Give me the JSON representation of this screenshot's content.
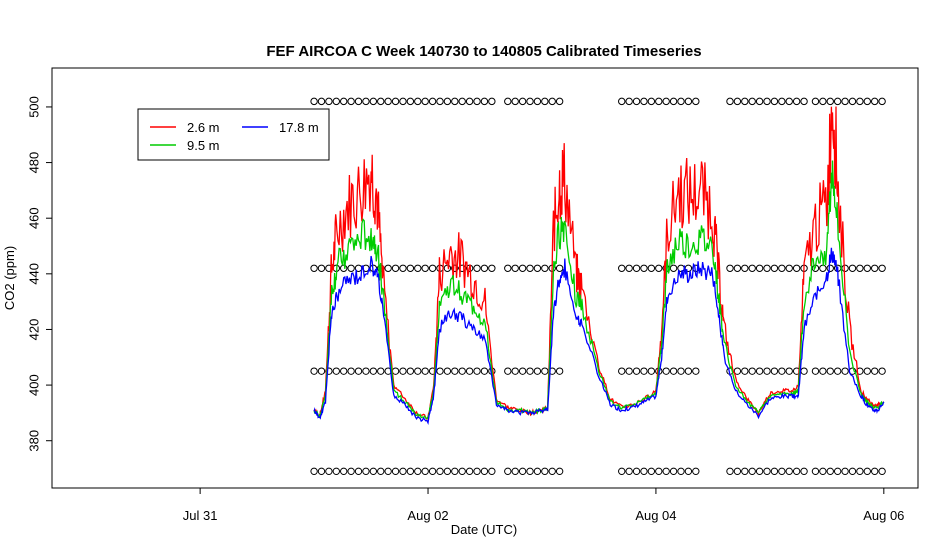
{
  "chart_data": {
    "type": "line",
    "title": "FEF AIRCOA C  Week 140730 to 140805  Calibrated Timeseries",
    "xlabel": "Date (UTC)",
    "ylabel": "CO2 (ppm)",
    "x_tick_labels": [
      "Jul 31",
      "Aug 02",
      "Aug 04",
      "Aug 06"
    ],
    "x_tick_days": [
      0,
      2,
      4,
      6
    ],
    "xlim_days": [
      -1.3,
      6.3
    ],
    "y_ticks": [
      380,
      400,
      420,
      440,
      460,
      480,
      500
    ],
    "ylim": [
      363,
      514
    ],
    "legend": {
      "position": "top-left",
      "entries": [
        {
          "label": "2.6 m",
          "color": "#ff0000"
        },
        {
          "label": "9.5 m",
          "color": "#00cc00"
        },
        {
          "label": "17.8 m",
          "color": "#0000ff"
        }
      ]
    },
    "series": [
      {
        "name": "2.6 m",
        "color": "#ff0000",
        "points": [
          [
            1.0,
            391
          ],
          [
            1.05,
            389
          ],
          [
            1.1,
            398
          ],
          [
            1.15,
            440
          ],
          [
            1.2,
            455
          ],
          [
            1.3,
            465
          ],
          [
            1.4,
            470
          ],
          [
            1.5,
            478
          ],
          [
            1.55,
            468
          ],
          [
            1.6,
            440
          ],
          [
            1.7,
            400
          ],
          [
            1.8,
            395
          ],
          [
            1.9,
            390
          ],
          [
            2.0,
            388
          ],
          [
            2.05,
            400
          ],
          [
            2.1,
            440
          ],
          [
            2.2,
            448
          ],
          [
            2.3,
            445
          ],
          [
            2.4,
            438
          ],
          [
            2.5,
            430
          ],
          [
            2.6,
            395
          ],
          [
            2.7,
            392
          ],
          [
            2.8,
            391
          ],
          [
            2.9,
            390
          ],
          [
            3.0,
            391
          ],
          [
            3.05,
            392
          ],
          [
            3.1,
            455
          ],
          [
            3.15,
            472
          ],
          [
            3.2,
            475
          ],
          [
            3.3,
            440
          ],
          [
            3.35,
            435
          ],
          [
            3.5,
            407
          ],
          [
            3.6,
            395
          ],
          [
            3.7,
            392
          ],
          [
            3.8,
            393
          ],
          [
            3.9,
            395
          ],
          [
            4.0,
            398
          ],
          [
            4.05,
            420
          ],
          [
            4.1,
            455
          ],
          [
            4.2,
            470
          ],
          [
            4.3,
            468
          ],
          [
            4.4,
            470
          ],
          [
            4.5,
            462
          ],
          [
            4.55,
            440
          ],
          [
            4.6,
            420
          ],
          [
            4.7,
            402
          ],
          [
            4.8,
            395
          ],
          [
            4.9,
            390
          ],
          [
            5.0,
            397
          ],
          [
            5.1,
            398
          ],
          [
            5.2,
            398
          ],
          [
            5.25,
            400
          ],
          [
            5.3,
            440
          ],
          [
            5.4,
            458
          ],
          [
            5.5,
            465
          ],
          [
            5.55,
            505
          ],
          [
            5.6,
            470
          ],
          [
            5.7,
            420
          ],
          [
            5.8,
            398
          ],
          [
            5.85,
            395
          ],
          [
            5.9,
            393
          ],
          [
            5.95,
            393
          ],
          [
            6.0,
            394
          ]
        ]
      },
      {
        "name": "9.5 m",
        "color": "#00cc00",
        "points": [
          [
            1.0,
            391
          ],
          [
            1.05,
            389
          ],
          [
            1.1,
            396
          ],
          [
            1.15,
            432
          ],
          [
            1.2,
            442
          ],
          [
            1.3,
            449
          ],
          [
            1.4,
            452
          ],
          [
            1.5,
            455
          ],
          [
            1.55,
            450
          ],
          [
            1.6,
            435
          ],
          [
            1.7,
            398
          ],
          [
            1.8,
            394
          ],
          [
            1.9,
            389
          ],
          [
            2.0,
            388
          ],
          [
            2.05,
            398
          ],
          [
            2.1,
            430
          ],
          [
            2.2,
            436
          ],
          [
            2.3,
            433
          ],
          [
            2.4,
            428
          ],
          [
            2.5,
            422
          ],
          [
            2.6,
            394
          ],
          [
            2.7,
            391
          ],
          [
            2.8,
            391
          ],
          [
            2.9,
            390
          ],
          [
            3.0,
            391
          ],
          [
            3.05,
            392
          ],
          [
            3.1,
            440
          ],
          [
            3.15,
            455
          ],
          [
            3.2,
            458
          ],
          [
            3.3,
            432
          ],
          [
            3.35,
            428
          ],
          [
            3.5,
            405
          ],
          [
            3.6,
            394
          ],
          [
            3.7,
            392
          ],
          [
            3.8,
            393
          ],
          [
            3.9,
            395
          ],
          [
            4.0,
            397
          ],
          [
            4.05,
            415
          ],
          [
            4.1,
            442
          ],
          [
            4.2,
            452
          ],
          [
            4.3,
            450
          ],
          [
            4.4,
            452
          ],
          [
            4.5,
            450
          ],
          [
            4.55,
            432
          ],
          [
            4.6,
            415
          ],
          [
            4.7,
            400
          ],
          [
            4.8,
            394
          ],
          [
            4.9,
            390
          ],
          [
            5.0,
            396
          ],
          [
            5.1,
            397
          ],
          [
            5.2,
            397
          ],
          [
            5.25,
            398
          ],
          [
            5.3,
            430
          ],
          [
            5.4,
            445
          ],
          [
            5.5,
            450
          ],
          [
            5.55,
            478
          ],
          [
            5.6,
            455
          ],
          [
            5.7,
            412
          ],
          [
            5.8,
            397
          ],
          [
            5.85,
            394
          ],
          [
            5.9,
            392
          ],
          [
            5.95,
            392
          ],
          [
            6.0,
            394
          ]
        ]
      },
      {
        "name": "17.8 m",
        "color": "#0000ff",
        "points": [
          [
            1.0,
            391
          ],
          [
            1.05,
            388
          ],
          [
            1.1,
            394
          ],
          [
            1.15,
            425
          ],
          [
            1.2,
            432
          ],
          [
            1.3,
            438
          ],
          [
            1.4,
            440
          ],
          [
            1.5,
            444
          ],
          [
            1.55,
            440
          ],
          [
            1.6,
            430
          ],
          [
            1.7,
            396
          ],
          [
            1.8,
            393
          ],
          [
            1.9,
            388
          ],
          [
            2.0,
            387
          ],
          [
            2.05,
            396
          ],
          [
            2.1,
            420
          ],
          [
            2.2,
            426
          ],
          [
            2.3,
            424
          ],
          [
            2.4,
            420
          ],
          [
            2.5,
            417
          ],
          [
            2.6,
            393
          ],
          [
            2.7,
            391
          ],
          [
            2.8,
            390
          ],
          [
            2.9,
            390
          ],
          [
            3.0,
            391
          ],
          [
            3.05,
            391
          ],
          [
            3.1,
            425
          ],
          [
            3.15,
            438
          ],
          [
            3.2,
            442
          ],
          [
            3.3,
            425
          ],
          [
            3.35,
            422
          ],
          [
            3.5,
            403
          ],
          [
            3.6,
            393
          ],
          [
            3.7,
            391
          ],
          [
            3.8,
            392
          ],
          [
            3.9,
            394
          ],
          [
            4.0,
            396
          ],
          [
            4.05,
            410
          ],
          [
            4.1,
            432
          ],
          [
            4.2,
            440
          ],
          [
            4.3,
            440
          ],
          [
            4.4,
            442
          ],
          [
            4.5,
            440
          ],
          [
            4.55,
            425
          ],
          [
            4.6,
            410
          ],
          [
            4.7,
            398
          ],
          [
            4.8,
            393
          ],
          [
            4.9,
            389
          ],
          [
            5.0,
            395
          ],
          [
            5.1,
            396
          ],
          [
            5.2,
            396
          ],
          [
            5.25,
            396
          ],
          [
            5.3,
            420
          ],
          [
            5.4,
            432
          ],
          [
            5.5,
            440
          ],
          [
            5.55,
            448
          ],
          [
            5.6,
            438
          ],
          [
            5.7,
            405
          ],
          [
            5.8,
            396
          ],
          [
            5.85,
            393
          ],
          [
            5.9,
            391
          ],
          [
            5.95,
            391
          ],
          [
            6.0,
            394
          ]
        ]
      }
    ],
    "calibration_markers": {
      "symbol": "o",
      "levels": [
        369,
        405,
        442,
        502
      ],
      "segments_days": [
        [
          1.0,
          2.6
        ],
        [
          2.7,
          3.2
        ],
        [
          3.7,
          4.35
        ],
        [
          4.65,
          5.3
        ],
        [
          5.4,
          6.0
        ]
      ],
      "spacing_days": 0.065
    }
  }
}
